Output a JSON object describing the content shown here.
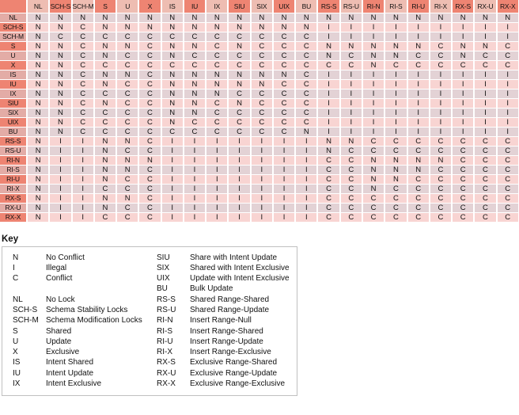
{
  "matrix": {
    "corner_label": "",
    "columns": [
      "NL",
      "SCH-S",
      "SCH-M",
      "S",
      "U",
      "X",
      "IS",
      "IU",
      "IX",
      "SIU",
      "SIX",
      "UIX",
      "BU",
      "RS-S",
      "RS-U",
      "RI-N",
      "RI-S",
      "RI-U",
      "RI-X",
      "RX-S",
      "RX-U",
      "RX-X"
    ],
    "rows": [
      {
        "label": "NL",
        "cells": [
          "N",
          "N",
          "N",
          "N",
          "N",
          "N",
          "N",
          "N",
          "N",
          "N",
          "N",
          "N",
          "N",
          "N",
          "N",
          "N",
          "N",
          "N",
          "N",
          "N",
          "N",
          "N"
        ]
      },
      {
        "label": "SCH-S",
        "cells": [
          "N",
          "N",
          "C",
          "N",
          "N",
          "N",
          "N",
          "N",
          "N",
          "N",
          "N",
          "N",
          "N",
          "I",
          "I",
          "I",
          "I",
          "I",
          "I",
          "I",
          "I",
          "I"
        ]
      },
      {
        "label": "SCH-M",
        "cells": [
          "N",
          "C",
          "C",
          "C",
          "C",
          "C",
          "C",
          "C",
          "C",
          "C",
          "C",
          "C",
          "C",
          "I",
          "I",
          "I",
          "I",
          "I",
          "I",
          "I",
          "I",
          "I"
        ]
      },
      {
        "label": "S",
        "cells": [
          "N",
          "N",
          "C",
          "N",
          "N",
          "C",
          "N",
          "N",
          "C",
          "N",
          "C",
          "C",
          "C",
          "N",
          "N",
          "N",
          "N",
          "N",
          "C",
          "N",
          "N",
          "C"
        ]
      },
      {
        "label": "U",
        "cells": [
          "N",
          "N",
          "C",
          "N",
          "C",
          "C",
          "N",
          "C",
          "C",
          "C",
          "C",
          "C",
          "C",
          "N",
          "C",
          "N",
          "N",
          "C",
          "C",
          "N",
          "C",
          "C"
        ]
      },
      {
        "label": "X",
        "cells": [
          "N",
          "N",
          "C",
          "C",
          "C",
          "C",
          "C",
          "C",
          "C",
          "C",
          "C",
          "C",
          "C",
          "C",
          "C",
          "N",
          "C",
          "C",
          "C",
          "C",
          "C",
          "C"
        ]
      },
      {
        "label": "IS",
        "cells": [
          "N",
          "N",
          "C",
          "N",
          "N",
          "C",
          "N",
          "N",
          "N",
          "N",
          "N",
          "N",
          "C",
          "I",
          "I",
          "I",
          "I",
          "I",
          "I",
          "I",
          "I",
          "I"
        ]
      },
      {
        "label": "IU",
        "cells": [
          "N",
          "N",
          "C",
          "N",
          "C",
          "C",
          "N",
          "N",
          "N",
          "N",
          "N",
          "C",
          "C",
          "I",
          "I",
          "I",
          "I",
          "I",
          "I",
          "I",
          "I",
          "I"
        ]
      },
      {
        "label": "IX",
        "cells": [
          "N",
          "N",
          "C",
          "C",
          "C",
          "C",
          "N",
          "N",
          "N",
          "C",
          "C",
          "C",
          "C",
          "I",
          "I",
          "I",
          "I",
          "I",
          "I",
          "I",
          "I",
          "I"
        ]
      },
      {
        "label": "SIU",
        "cells": [
          "N",
          "N",
          "C",
          "N",
          "C",
          "C",
          "N",
          "N",
          "C",
          "N",
          "C",
          "C",
          "C",
          "I",
          "I",
          "I",
          "I",
          "I",
          "I",
          "I",
          "I",
          "I"
        ]
      },
      {
        "label": "SIX",
        "cells": [
          "N",
          "N",
          "C",
          "C",
          "C",
          "C",
          "N",
          "N",
          "C",
          "C",
          "C",
          "C",
          "C",
          "I",
          "I",
          "I",
          "I",
          "I",
          "I",
          "I",
          "I",
          "I"
        ]
      },
      {
        "label": "UIX",
        "cells": [
          "N",
          "N",
          "C",
          "C",
          "C",
          "C",
          "N",
          "C",
          "C",
          "C",
          "C",
          "C",
          "C",
          "I",
          "I",
          "I",
          "I",
          "I",
          "I",
          "I",
          "I",
          "I"
        ]
      },
      {
        "label": "BU",
        "cells": [
          "N",
          "N",
          "C",
          "C",
          "C",
          "C",
          "C",
          "C",
          "C",
          "C",
          "C",
          "C",
          "N",
          "I",
          "I",
          "I",
          "I",
          "I",
          "I",
          "I",
          "I",
          "I"
        ]
      },
      {
        "label": "RS-S",
        "cells": [
          "N",
          "I",
          "I",
          "N",
          "N",
          "C",
          "I",
          "I",
          "I",
          "I",
          "I",
          "I",
          "I",
          "N",
          "N",
          "C",
          "C",
          "C",
          "C",
          "C",
          "C",
          "C"
        ]
      },
      {
        "label": "RS-U",
        "cells": [
          "N",
          "I",
          "I",
          "N",
          "C",
          "C",
          "I",
          "I",
          "I",
          "I",
          "I",
          "I",
          "I",
          "N",
          "C",
          "C",
          "C",
          "C",
          "C",
          "C",
          "C",
          "C"
        ]
      },
      {
        "label": "RI-N",
        "cells": [
          "N",
          "I",
          "I",
          "N",
          "N",
          "N",
          "I",
          "I",
          "I",
          "I",
          "I",
          "I",
          "I",
          "C",
          "C",
          "N",
          "N",
          "N",
          "N",
          "C",
          "C",
          "C"
        ]
      },
      {
        "label": "RI-S",
        "cells": [
          "N",
          "I",
          "I",
          "N",
          "N",
          "C",
          "I",
          "I",
          "I",
          "I",
          "I",
          "I",
          "I",
          "C",
          "C",
          "N",
          "N",
          "N",
          "C",
          "C",
          "C",
          "C"
        ]
      },
      {
        "label": "RI-U",
        "cells": [
          "N",
          "I",
          "I",
          "N",
          "C",
          "C",
          "I",
          "I",
          "I",
          "I",
          "I",
          "I",
          "I",
          "C",
          "C",
          "N",
          "N",
          "C",
          "C",
          "C",
          "C",
          "C"
        ]
      },
      {
        "label": "RI-X",
        "cells": [
          "N",
          "I",
          "I",
          "C",
          "C",
          "C",
          "I",
          "I",
          "I",
          "I",
          "I",
          "I",
          "I",
          "C",
          "C",
          "N",
          "C",
          "C",
          "C",
          "C",
          "C",
          "C"
        ]
      },
      {
        "label": "RX-S",
        "cells": [
          "N",
          "I",
          "I",
          "N",
          "N",
          "C",
          "I",
          "I",
          "I",
          "I",
          "I",
          "I",
          "I",
          "C",
          "C",
          "C",
          "C",
          "C",
          "C",
          "C",
          "C",
          "C"
        ]
      },
      {
        "label": "RX-U",
        "cells": [
          "N",
          "I",
          "I",
          "N",
          "C",
          "C",
          "I",
          "I",
          "I",
          "I",
          "I",
          "I",
          "I",
          "C",
          "C",
          "C",
          "C",
          "C",
          "C",
          "C",
          "C",
          "C"
        ]
      },
      {
        "label": "RX-X",
        "cells": [
          "N",
          "I",
          "I",
          "C",
          "C",
          "C",
          "I",
          "I",
          "I",
          "I",
          "I",
          "I",
          "I",
          "C",
          "C",
          "C",
          "C",
          "C",
          "C",
          "C",
          "C",
          "C"
        ]
      }
    ]
  },
  "key": {
    "heading": "Key",
    "left_column": [
      {
        "abbr": "N",
        "desc": "No Conflict"
      },
      {
        "abbr": "I",
        "desc": "Illegal"
      },
      {
        "abbr": "C",
        "desc": "Conflict"
      },
      {
        "abbr": "",
        "desc": ""
      },
      {
        "abbr": "NL",
        "desc": "No Lock"
      },
      {
        "abbr": "SCH-S",
        "desc": "Schema Stability Locks"
      },
      {
        "abbr": "SCH-M",
        "desc": "Schema Modification Locks"
      },
      {
        "abbr": "S",
        "desc": "Shared"
      },
      {
        "abbr": "U",
        "desc": "Update"
      },
      {
        "abbr": "X",
        "desc": "Exclusive"
      },
      {
        "abbr": "IS",
        "desc": "Intent Shared"
      },
      {
        "abbr": "IU",
        "desc": "Intent Update"
      },
      {
        "abbr": "IX",
        "desc": "Intent Exclusive"
      }
    ],
    "right_column": [
      {
        "abbr": "SIU",
        "desc": "Share with Intent Update"
      },
      {
        "abbr": "SIX",
        "desc": "Shared with Intent Exclusive"
      },
      {
        "abbr": "UIX",
        "desc": "Update with Intent Exclusive"
      },
      {
        "abbr": "BU",
        "desc": "Bulk Update"
      },
      {
        "abbr": "RS-S",
        "desc": "Shared Range-Shared"
      },
      {
        "abbr": "RS-U",
        "desc": "Shared Range-Update"
      },
      {
        "abbr": "RI-N",
        "desc": "Insert Range-Null"
      },
      {
        "abbr": "RI-S",
        "desc": "Insert Range-Shared"
      },
      {
        "abbr": "RI-U",
        "desc": "Insert Range-Update"
      },
      {
        "abbr": "RI-X",
        "desc": "Insert Range-Exclusive"
      },
      {
        "abbr": "RX-S",
        "desc": "Exclusive Range-Shared"
      },
      {
        "abbr": "RX-U",
        "desc": "Exclusive Range-Update"
      },
      {
        "abbr": "RX-X",
        "desc": "Exclusive Range-Exclusive"
      }
    ]
  },
  "colors": {
    "header_dark": "#ee8472",
    "header_light": "#eebdb2",
    "label_muted": "#e3aca6",
    "row_gray": "#e3d2d5",
    "row_pink": "#f8d4d2",
    "grid": "#ffffff",
    "key_border": "#c0c0c0",
    "text": "#111111"
  }
}
